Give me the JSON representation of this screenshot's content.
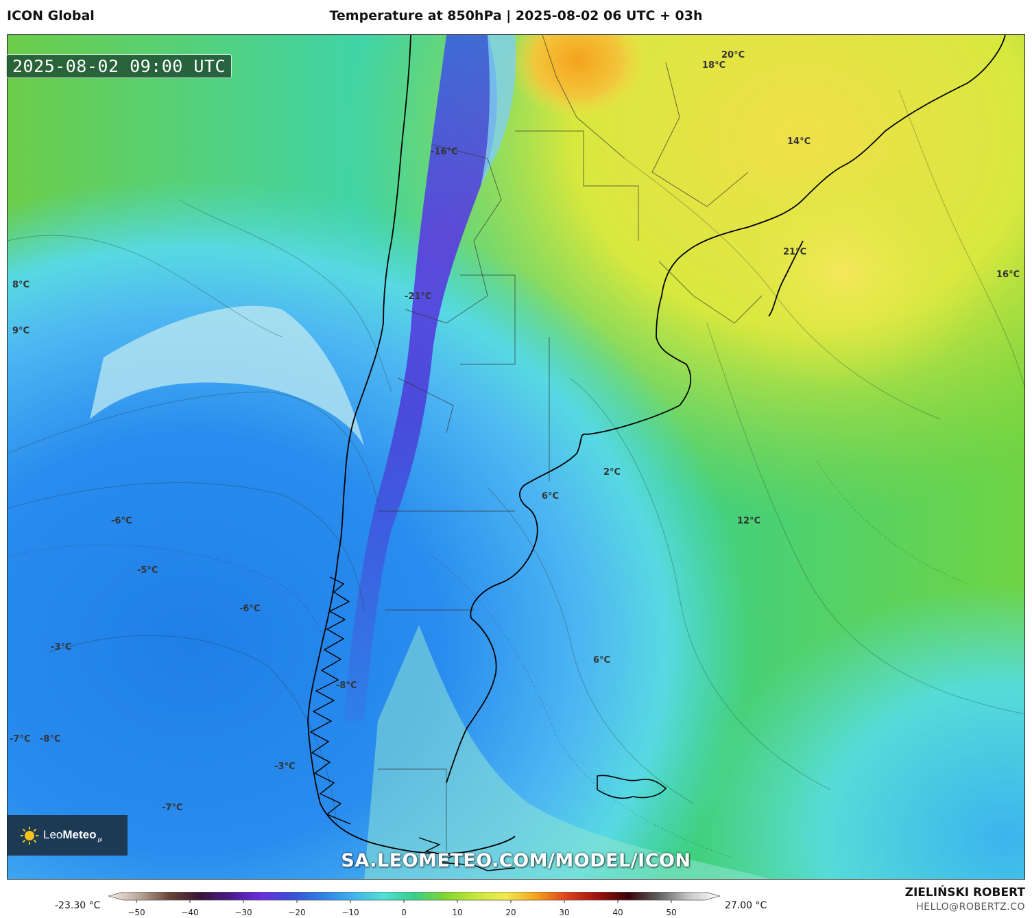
{
  "header": {
    "model": "ICON Global",
    "title": "Temperature at 850hPa | 2025-08-02 06 UTC + 03h"
  },
  "valid_time": "2025-08-02 09:00 UTC",
  "temperature_labels": [
    "20°C",
    "18°C",
    "-16°C",
    "14°C",
    "21°C",
    "16°C",
    "8°C",
    "9°C",
    "-21°C",
    "2°C",
    "6°C",
    "12°C",
    "-6°C",
    "-5°C",
    "-6°C",
    "-3°C",
    "6°C",
    "-8°C",
    "-7°C",
    "-8°C",
    "-3°C",
    "-7°C"
  ],
  "logo": {
    "brand_bold": "Leo",
    "brand_rest": "Meteo",
    "suffix": ".pl"
  },
  "watermark": "SA.LEOMETEO.COM/MODEL/ICON",
  "legend": {
    "min_label": "-23.30 °C",
    "max_label": "27.00 °C",
    "ticks": [
      "−50",
      "−40",
      "−30",
      "−20",
      "−10",
      "0",
      "10",
      "20",
      "30",
      "40",
      "50"
    ],
    "colors": [
      "#f6f0e8",
      "#b9a899",
      "#6a4434",
      "#3a1438",
      "#4a1a8c",
      "#6a2ee0",
      "#3a4fd8",
      "#2f7fe8",
      "#3fb3f0",
      "#4fe0d6",
      "#35d08a",
      "#7fd62f",
      "#c6e83a",
      "#f2ea4a",
      "#f6a01e",
      "#e0401a",
      "#a0100c",
      "#3a0406",
      "#606060",
      "#c8c8c8",
      "#ffffff"
    ]
  },
  "author": "ZIELIŃSKI ROBERT",
  "email": "HELLO@ROBERTZ.CO"
}
